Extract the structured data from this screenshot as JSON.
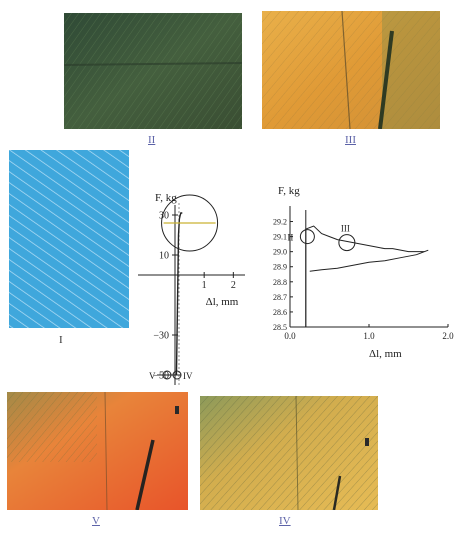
{
  "panels": {
    "II": {
      "caption": "II"
    },
    "III": {
      "caption": "III"
    },
    "I": {
      "caption": "I"
    },
    "V": {
      "caption": "V"
    },
    "IV": {
      "caption": "IV"
    }
  },
  "colors": {
    "panel_I": "#3fa7dc",
    "panel_II": "#3c5a3a",
    "panel_III": "#e4a63c",
    "panel_V": "#e5612a",
    "panel_IV": "#d6ad4a",
    "caption": "#5d63a8"
  },
  "chart_data": [
    {
      "type": "line",
      "ylabel": "F,  kg",
      "xlabel": "Δl, mm",
      "x_ticks": [
        "1",
        "2"
      ],
      "x_tick_values": [
        1,
        2
      ],
      "y_ticks": [
        "30",
        "10",
        "−30",
        "−50"
      ],
      "y_tick_values": [
        30,
        10,
        -30,
        -50
      ],
      "xlim": [
        -1.2,
        2.4
      ],
      "ylim": [
        -55,
        40
      ],
      "point_labels": [
        "V",
        "IV"
      ],
      "series": [
        {
          "x": [
            0.05,
            0.1,
            0.12,
            0.15,
            0.18,
            0.2,
            0.25
          ],
          "y": [
            -50,
            0,
            20,
            28,
            30,
            31,
            31
          ]
        }
      ]
    },
    {
      "type": "line",
      "ylabel": "F,  kg",
      "xlabel": "Δl, mm",
      "x_ticks": [
        "0.0",
        "1.0",
        "2.0"
      ],
      "x_tick_values": [
        0,
        1,
        2
      ],
      "y_ticks": [
        "29.2",
        "29.1",
        "29.0",
        "28.9",
        "28.8",
        "28.7",
        "28.6",
        "28.5"
      ],
      "y_tick_values": [
        29.2,
        29.1,
        29.0,
        28.9,
        28.8,
        28.7,
        28.6,
        28.5
      ],
      "xlim": [
        0,
        2.0
      ],
      "ylim": [
        28.5,
        29.25
      ],
      "point_labels": [
        "II",
        "III"
      ],
      "series": [
        {
          "x": [
            0.2,
            0.2,
            0.3,
            0.4,
            0.5,
            0.6,
            0.7,
            0.8,
            0.9,
            1.0,
            1.1,
            1.2,
            1.3,
            1.4,
            1.5,
            1.6,
            1.7,
            1.75,
            1.6,
            1.4,
            1.2,
            1.0,
            0.8,
            0.6,
            0.4,
            0.25
          ],
          "y": [
            28.5,
            29.15,
            29.17,
            29.12,
            29.1,
            29.08,
            29.07,
            29.06,
            29.05,
            29.04,
            29.03,
            29.02,
            29.02,
            29.01,
            29.0,
            29.0,
            29.0,
            29.01,
            28.98,
            28.96,
            28.94,
            28.93,
            28.91,
            28.89,
            28.88,
            28.87
          ]
        }
      ]
    }
  ]
}
